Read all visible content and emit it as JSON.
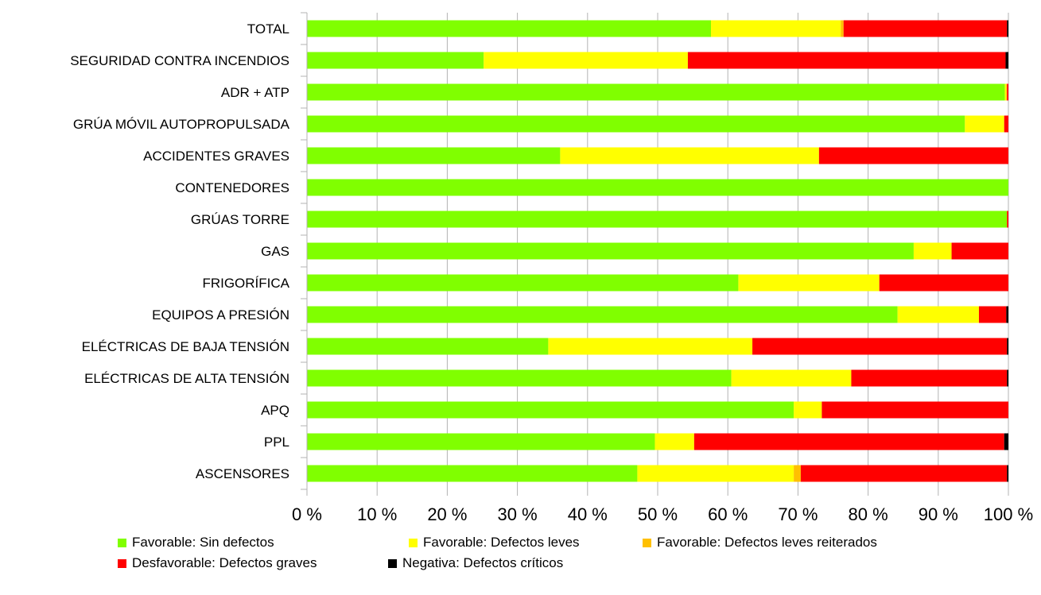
{
  "chart_data": {
    "type": "bar",
    "orientation": "horizontal",
    "stacked": "percent",
    "title": "",
    "xlabel": "",
    "ylabel": "",
    "xlim": [
      0,
      100
    ],
    "grid": true,
    "legend_position": "bottom",
    "x_ticks": [
      "0 %",
      "10 %",
      "20 %",
      "30 %",
      "40 %",
      "50 %",
      "60 %",
      "70 %",
      "80 %",
      "90 %",
      "100 %"
    ],
    "categories": [
      "TOTAL",
      "SEGURIDAD CONTRA INCENDIOS",
      "ADR + ATP",
      "GRÚA MÓVIL AUTOPROPULSADA",
      "ACCIDENTES GRAVES",
      "CONTENEDORES",
      "GRÚAS TORRE",
      "GAS",
      "FRIGORÍFICA",
      "EQUIPOS A PRESIÓN",
      "ELÉCTRICAS DE BAJA TENSIÓN",
      "ELÉCTRICAS DE ALTA TENSIÓN",
      "APQ",
      "PPL",
      "ASCENSORES"
    ],
    "series": [
      {
        "name": "Favorable: Sin defectos",
        "color": "#80ff00",
        "values": [
          57.6,
          25.2,
          99.5,
          93.8,
          36.1,
          100,
          99.8,
          86.5,
          61.5,
          84.2,
          34.4,
          60.5,
          69.4,
          49.6,
          47.1
        ]
      },
      {
        "name": "Favorable: Defectos leves",
        "color": "#ffff00",
        "values": [
          18.5,
          29.1,
          0.2,
          5.6,
          36.9,
          0,
          0,
          5.4,
          20.1,
          11.6,
          29.1,
          17.1,
          4.0,
          5.6,
          22.3
        ]
      },
      {
        "name": "Favorable: Defectos leves reiterados",
        "color": "#ffc000",
        "values": [
          0.4,
          0,
          0.1,
          0,
          0,
          0,
          0,
          0,
          0,
          0,
          0,
          0,
          0,
          0,
          1.0
        ]
      },
      {
        "name": "Desfavorable: Defectos graves",
        "color": "#ff0000",
        "values": [
          23.3,
          45.3,
          0.2,
          0.6,
          27.0,
          0,
          0.2,
          8.1,
          18.4,
          3.9,
          36.3,
          22.2,
          26.6,
          44.2,
          29.4
        ]
      },
      {
        "name": "Negativa: Defectos críticos",
        "color": "#000000",
        "values": [
          0.2,
          0.4,
          0,
          0,
          0,
          0,
          0,
          0,
          0,
          0.3,
          0.2,
          0.2,
          0,
          0.6,
          0.2
        ]
      }
    ]
  }
}
